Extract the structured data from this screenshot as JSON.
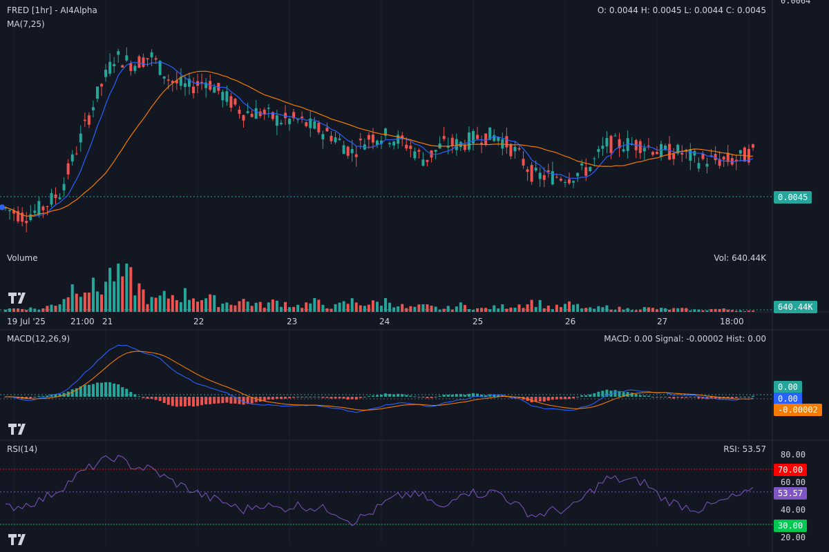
{
  "header": {
    "title": "FRED [1hr] - AI4Alpha",
    "indicator": "MA(7,25)",
    "ohlc": "O: 0.0044 H: 0.0045 L: 0.0044 C: 0.0045",
    "top_axis_value": "0.0064"
  },
  "price_panel": {
    "last_price_badge": "0.0045",
    "colors": {
      "up": "#26a69a",
      "down": "#ef5350",
      "ma7": "#2962ff",
      "ma25": "#f57c00"
    }
  },
  "volume_panel": {
    "title": "Volume",
    "value_text": "Vol: 640.44K",
    "badge": "640.44K"
  },
  "time_axis": {
    "labels": [
      "19 Jul '25",
      "21:00",
      "21",
      "22",
      "23",
      "24",
      "25",
      "26",
      "27",
      "18:00"
    ]
  },
  "macd_panel": {
    "title": "MACD(12,26,9)",
    "value_text": "MACD: 0.00 Signal: -0.00002 Hist: 0.00",
    "badges": {
      "hist": "0.00",
      "macd": "0.00",
      "signal": "-0.00002"
    },
    "colors": {
      "macd": "#2962ff",
      "signal": "#f57c00",
      "hist_up": "#26a69a",
      "hist_down": "#ef5350"
    }
  },
  "rsi_panel": {
    "title": "RSI(14)",
    "value_text": "RSI: 53.57",
    "axis_labels": [
      "80.00",
      "60.00",
      "40.00",
      "20.00"
    ],
    "badges": {
      "overbought": "70.00",
      "current": "53.57",
      "oversold": "30.00"
    },
    "colors": {
      "line": "#7e57c2",
      "overbought": "#ff0000",
      "oversold": "#00c853"
    }
  },
  "logo_text": "TV",
  "chart_data": {
    "type": "candlestick",
    "title": "FRED [1hr] - AI4Alpha",
    "x_range": [
      "19 Jul '25",
      "27 Jul '25 18:00"
    ],
    "price_range": [
      0.0033,
      0.0064
    ],
    "ohlc_last": {
      "open": 0.0044,
      "high": 0.0045,
      "low": 0.0044,
      "close": 0.0045
    },
    "price_close_series": [
      0.0038,
      0.0037,
      0.0038,
      0.004,
      0.0046,
      0.0052,
      0.0057,
      0.0056,
      0.0057,
      0.0054,
      0.0053,
      0.0054,
      0.0052,
      0.005,
      0.005,
      0.0049,
      0.0049,
      0.0048,
      0.0047,
      0.0045,
      0.0047,
      0.0047,
      0.0046,
      0.0044,
      0.0046,
      0.0046,
      0.0047,
      0.0047,
      0.0045,
      0.0042,
      0.0042,
      0.0042,
      0.0043,
      0.0046,
      0.0046,
      0.0046,
      0.0045,
      0.0045,
      0.0044,
      0.0044,
      0.0044,
      0.0045
    ],
    "volume_series": [
      0.3,
      0.4,
      0.3,
      1.1,
      3.3,
      2.2,
      4.3,
      3.1,
      1.1,
      1.7,
      1.8,
      1.4,
      0.9,
      1.2,
      0.7,
      1.1,
      0.6,
      1.0,
      0.5,
      1.1,
      0.8,
      1.2,
      0.4,
      0.6,
      0.3,
      0.7,
      0.3,
      0.5,
      0.7,
      1.1,
      0.4,
      0.8,
      0.3,
      0.5,
      0.3,
      0.4,
      0.3,
      0.3,
      0.2,
      0.3,
      0.2,
      0.1
    ],
    "volume_last": "640.44K",
    "macd": {
      "macd": 0.0,
      "signal": -2e-05,
      "hist": 0.0
    },
    "rsi": {
      "value": 53.57,
      "overbought": 70,
      "oversold": 30,
      "ylim": [
        20,
        80
      ]
    },
    "rsi_series": [
      42,
      44,
      48,
      56,
      66,
      74,
      79,
      72,
      70,
      62,
      56,
      50,
      46,
      40,
      45,
      41,
      44,
      42,
      40,
      32,
      38,
      47,
      52,
      50,
      40,
      55,
      52,
      54,
      44,
      36,
      40,
      41,
      53,
      63,
      62,
      61,
      49,
      44,
      41,
      45,
      50,
      53.57
    ]
  }
}
